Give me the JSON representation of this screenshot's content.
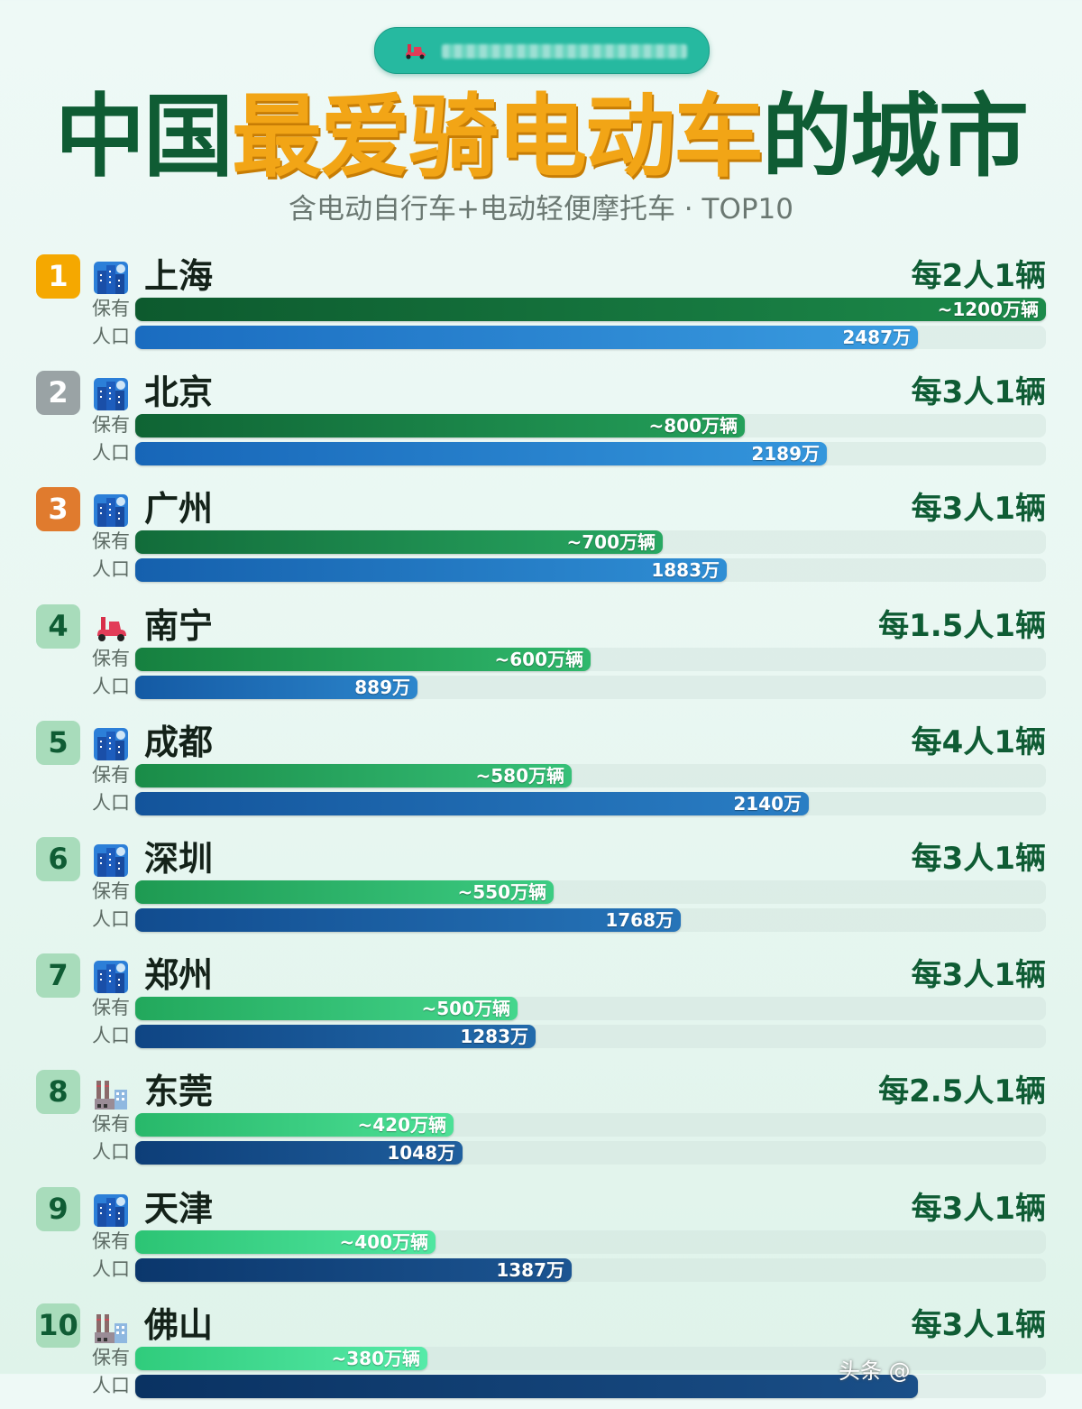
{
  "header": {
    "pill_icon": "scooter-icon",
    "title_part1": "中国",
    "title_part2": "最爱骑电动车",
    "title_part3": "的城市",
    "subtitle": "含电动自行车+电动轻便摩托车 · TOP10"
  },
  "labels": {
    "own": "保有",
    "pop": "人口"
  },
  "colors": {
    "title_green": "#0f5c34",
    "title_orange": "#f2a516",
    "rank1": "#f5a800",
    "rank2": "#9aa3a5",
    "rank3": "#e07b2e",
    "rank_other": "#a8dcbb"
  },
  "cities": [
    {
      "rank": "1",
      "name": "上海",
      "icon": "cityscape-icon",
      "ratio": "每2人1辆",
      "own_label": "~1200万辆",
      "pop_label": "2487万",
      "own_w": 1010,
      "pop_w": 868,
      "own_color": "linear-gradient(90deg,#0d5a2e,#1c8a4a)",
      "pop_color": "linear-gradient(90deg,#1a6cc0,#3a9ce0)"
    },
    {
      "rank": "2",
      "name": "北京",
      "icon": "cityscape-icon",
      "ratio": "每3人1辆",
      "own_label": "~800万辆",
      "pop_label": "2189万",
      "own_w": 676,
      "pop_w": 767,
      "own_color": "linear-gradient(90deg,#0f6434,#24a05a)",
      "pop_color": "linear-gradient(90deg,#1766b8,#3496dc)"
    },
    {
      "rank": "3",
      "name": "广州",
      "icon": "cityscape-icon",
      "ratio": "每3人1辆",
      "own_label": "~700万辆",
      "pop_label": "1883万",
      "own_w": 585,
      "pop_w": 656,
      "own_color": "linear-gradient(90deg,#126c3a,#28a862)",
      "pop_color": "linear-gradient(90deg,#1560ad,#2f8ed4)"
    },
    {
      "rank": "4",
      "name": "南宁",
      "icon": "scooter-icon",
      "ratio": "每1.5人1辆",
      "own_label": "~600万辆",
      "pop_label": "889万",
      "own_w": 505,
      "pop_w": 313,
      "own_color": "linear-gradient(90deg,#16803f,#2fb86c)",
      "pop_color": "linear-gradient(90deg,#145aa4,#2c86cc)"
    },
    {
      "rank": "5",
      "name": "成都",
      "icon": "cityscape-icon",
      "ratio": "每4人1辆",
      "own_label": "~580万辆",
      "pop_label": "2140万",
      "own_w": 484,
      "pop_w": 747,
      "own_color": "linear-gradient(90deg,#1a8c48,#36c078)",
      "pop_color": "linear-gradient(90deg,#13549b,#2a7ec4)"
    },
    {
      "rank": "6",
      "name": "深圳",
      "icon": "cityscape-icon",
      "ratio": "每3人1辆",
      "own_label": "~550万辆",
      "pop_label": "1768万",
      "own_w": 464,
      "pop_w": 605,
      "own_color": "linear-gradient(90deg,#1e9a52,#3ccc82)",
      "pop_color": "linear-gradient(90deg,#114c8f,#2674b8)"
    },
    {
      "rank": "7",
      "name": "郑州",
      "icon": "cityscape-icon",
      "ratio": "每3人1辆",
      "own_label": "~500万辆",
      "pop_label": "1283万",
      "own_w": 424,
      "pop_w": 444,
      "own_color": "linear-gradient(90deg,#22a85c,#44d68c)",
      "pop_color": "linear-gradient(90deg,#0f4584,#226aab)"
    },
    {
      "rank": "8",
      "name": "东莞",
      "icon": "factory-icon",
      "ratio": "每2.5人1辆",
      "own_label": "~420万辆",
      "pop_label": "1048万",
      "own_w": 353,
      "pop_w": 363,
      "own_color": "linear-gradient(90deg,#28b86a,#4ce096)",
      "pop_color": "linear-gradient(90deg,#0d3e78,#1f5f9e)"
    },
    {
      "rank": "9",
      "name": "天津",
      "icon": "cityscape-icon",
      "ratio": "每3人1辆",
      "own_label": "~400万辆",
      "pop_label": "1387万",
      "own_w": 333,
      "pop_w": 484,
      "own_color": "linear-gradient(90deg,#2cc474,#50e6a0)",
      "pop_color": "linear-gradient(90deg,#0b376c,#1c5592)"
    },
    {
      "rank": "10",
      "name": "佛山",
      "icon": "factory-icon",
      "ratio": "每3人1辆",
      "own_label": "~380万辆",
      "pop_label": "",
      "own_w": 324,
      "pop_w": 0,
      "own_color": "linear-gradient(90deg,#30cc7c,#56eaa8)",
      "pop_color": "linear-gradient(90deg,#0a3262,#1a4f88)"
    }
  ],
  "watermark": "头条 @",
  "chart_data": {
    "type": "bar",
    "title": "中国最爱骑电动车的城市",
    "subtitle": "含电动自行车+电动轻便摩托车 · TOP10",
    "categories": [
      "上海",
      "北京",
      "广州",
      "南宁",
      "成都",
      "深圳",
      "郑州",
      "东莞",
      "天津",
      "佛山"
    ],
    "series": [
      {
        "name": "保有 (万辆)",
        "values": [
          1200,
          800,
          700,
          600,
          580,
          550,
          500,
          420,
          400,
          380
        ]
      },
      {
        "name": "人口 (万)",
        "values": [
          2487,
          2189,
          1883,
          889,
          2140,
          1768,
          1283,
          1048,
          1387,
          null
        ]
      }
    ],
    "annotations": [
      "每2人1辆",
      "每3人1辆",
      "每3人1辆",
      "每1.5人1辆",
      "每4人1辆",
      "每3人1辆",
      "每3人1辆",
      "每2.5人1辆",
      "每3人1辆",
      "每3人1辆"
    ],
    "orientation": "horizontal",
    "grid": false
  }
}
